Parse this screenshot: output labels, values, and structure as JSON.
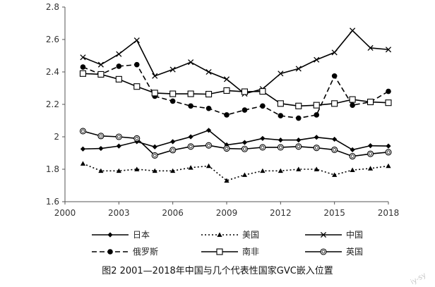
{
  "caption": "图2 2001—2018年中国与几个代表性国家GVC嵌入位置",
  "watermark": "iy-sy",
  "chart_data": {
    "type": "line",
    "x": [
      2001,
      2002,
      2003,
      2004,
      2005,
      2006,
      2007,
      2008,
      2009,
      2010,
      2011,
      2012,
      2013,
      2014,
      2015,
      2016,
      2017,
      2018
    ],
    "xticks": [
      2000,
      2003,
      2006,
      2009,
      2012,
      2015,
      2018
    ],
    "yticks": [
      1.6,
      1.8,
      2,
      2.2,
      2.4,
      2.6,
      2.8
    ],
    "xlim": [
      2000,
      2018
    ],
    "ylim": [
      1.6,
      2.8
    ],
    "grid": false,
    "legend_position": "bottom",
    "series": [
      {
        "name": "日本",
        "style": "solid",
        "marker": "diamond",
        "color": "#000000",
        "values": [
          1.925,
          1.928,
          1.943,
          1.97,
          1.938,
          1.97,
          2.0,
          2.04,
          1.95,
          1.965,
          1.99,
          1.98,
          1.98,
          1.997,
          1.985,
          1.92,
          1.945,
          1.943
        ]
      },
      {
        "name": "美国",
        "style": "dotted",
        "marker": "triangle",
        "color": "#000000",
        "values": [
          1.835,
          1.79,
          1.79,
          1.8,
          1.79,
          1.79,
          1.81,
          1.82,
          1.73,
          1.765,
          1.79,
          1.79,
          1.8,
          1.8,
          1.765,
          1.795,
          1.805,
          1.82
        ]
      },
      {
        "name": "中国",
        "style": "solid",
        "marker": "x",
        "color": "#000000",
        "values": [
          2.49,
          2.445,
          2.51,
          2.595,
          2.375,
          2.415,
          2.46,
          2.4,
          2.355,
          2.265,
          2.295,
          2.39,
          2.42,
          2.475,
          2.52,
          2.655,
          2.548,
          2.538
        ]
      },
      {
        "name": "俄罗斯",
        "style": "dashed",
        "marker": "circle-filled",
        "color": "#000000",
        "values": [
          2.43,
          2.385,
          2.435,
          2.445,
          2.25,
          2.22,
          2.19,
          2.175,
          2.135,
          2.165,
          2.19,
          2.13,
          2.115,
          2.135,
          2.375,
          2.195,
          2.215,
          2.28
        ]
      },
      {
        "name": "南非",
        "style": "solid",
        "marker": "square-open",
        "color": "#000000",
        "values": [
          2.39,
          2.385,
          2.355,
          2.31,
          2.27,
          2.265,
          2.265,
          2.263,
          2.285,
          2.278,
          2.28,
          2.205,
          2.19,
          2.195,
          2.205,
          2.23,
          2.215,
          2.21
        ]
      },
      {
        "name": "英国",
        "style": "solid",
        "marker": "circle-open",
        "color": "#000000",
        "values": [
          2.035,
          2.005,
          2.0,
          1.99,
          1.885,
          1.918,
          1.94,
          1.947,
          1.928,
          1.925,
          1.935,
          1.935,
          1.94,
          1.932,
          1.92,
          1.88,
          1.895,
          1.905
        ]
      }
    ]
  }
}
